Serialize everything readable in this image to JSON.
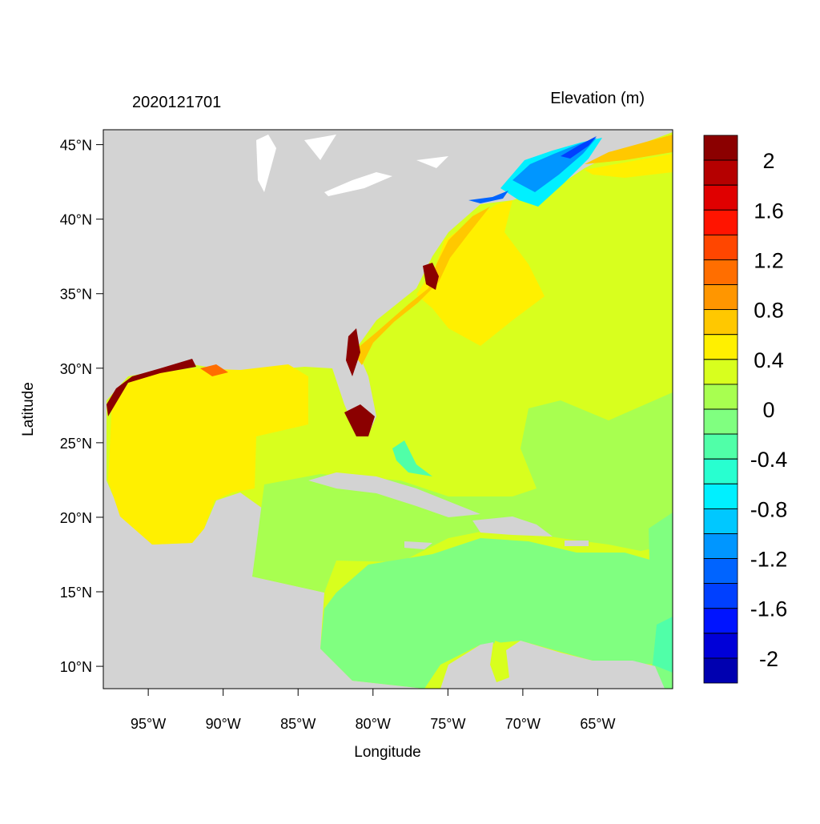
{
  "chart_data": {
    "type": "filled-contour-map",
    "title": "2020121701",
    "variable": "Elevation (m)",
    "x_label": "Longitude",
    "y_label": "Latitude",
    "xlim": [
      -98,
      -60
    ],
    "ylim": [
      8.5,
      46
    ],
    "xticks": [
      {
        "value": -95,
        "label": "95°W"
      },
      {
        "value": -90,
        "label": "90°W"
      },
      {
        "value": -85,
        "label": "85°W"
      },
      {
        "value": -80,
        "label": "80°W"
      },
      {
        "value": -75,
        "label": "75°W"
      },
      {
        "value": -70,
        "label": "70°W"
      },
      {
        "value": -65,
        "label": "65°W"
      }
    ],
    "yticks": [
      {
        "value": 10,
        "label": "10°N"
      },
      {
        "value": 15,
        "label": "15°N"
      },
      {
        "value": 20,
        "label": "20°N"
      },
      {
        "value": 25,
        "label": "25°N"
      },
      {
        "value": 30,
        "label": "30°N"
      },
      {
        "value": 35,
        "label": "35°N"
      },
      {
        "value": 40,
        "label": "40°N"
      },
      {
        "value": 45,
        "label": "45°N"
      }
    ],
    "land_color": "#d3d3d3",
    "colorbar": {
      "levels": [
        2,
        1.8,
        1.6,
        1.4,
        1.2,
        1,
        0.8,
        0.6,
        0.4,
        0.2,
        0,
        -0.2,
        -0.4,
        -0.6,
        -0.8,
        -1,
        -1.2,
        -1.4,
        -1.6,
        -1.8,
        -2
      ],
      "ticks": [
        2,
        1.6,
        1.2,
        0.8,
        0.4,
        0,
        -0.4,
        -0.8,
        -1.2,
        -1.6,
        -2
      ],
      "colors": [
        "#8b0000",
        "#b50000",
        "#e00000",
        "#ff1400",
        "#ff4600",
        "#ff6e00",
        "#ff9600",
        "#ffc800",
        "#fff000",
        "#d8ff1e",
        "#a8ff50",
        "#80ff80",
        "#50ffa8",
        "#28ffd0",
        "#00f0ff",
        "#00c8ff",
        "#0096ff",
        "#0064ff",
        "#0040ff",
        "#0014ff",
        "#0000d8",
        "#0000b0"
      ]
    }
  }
}
